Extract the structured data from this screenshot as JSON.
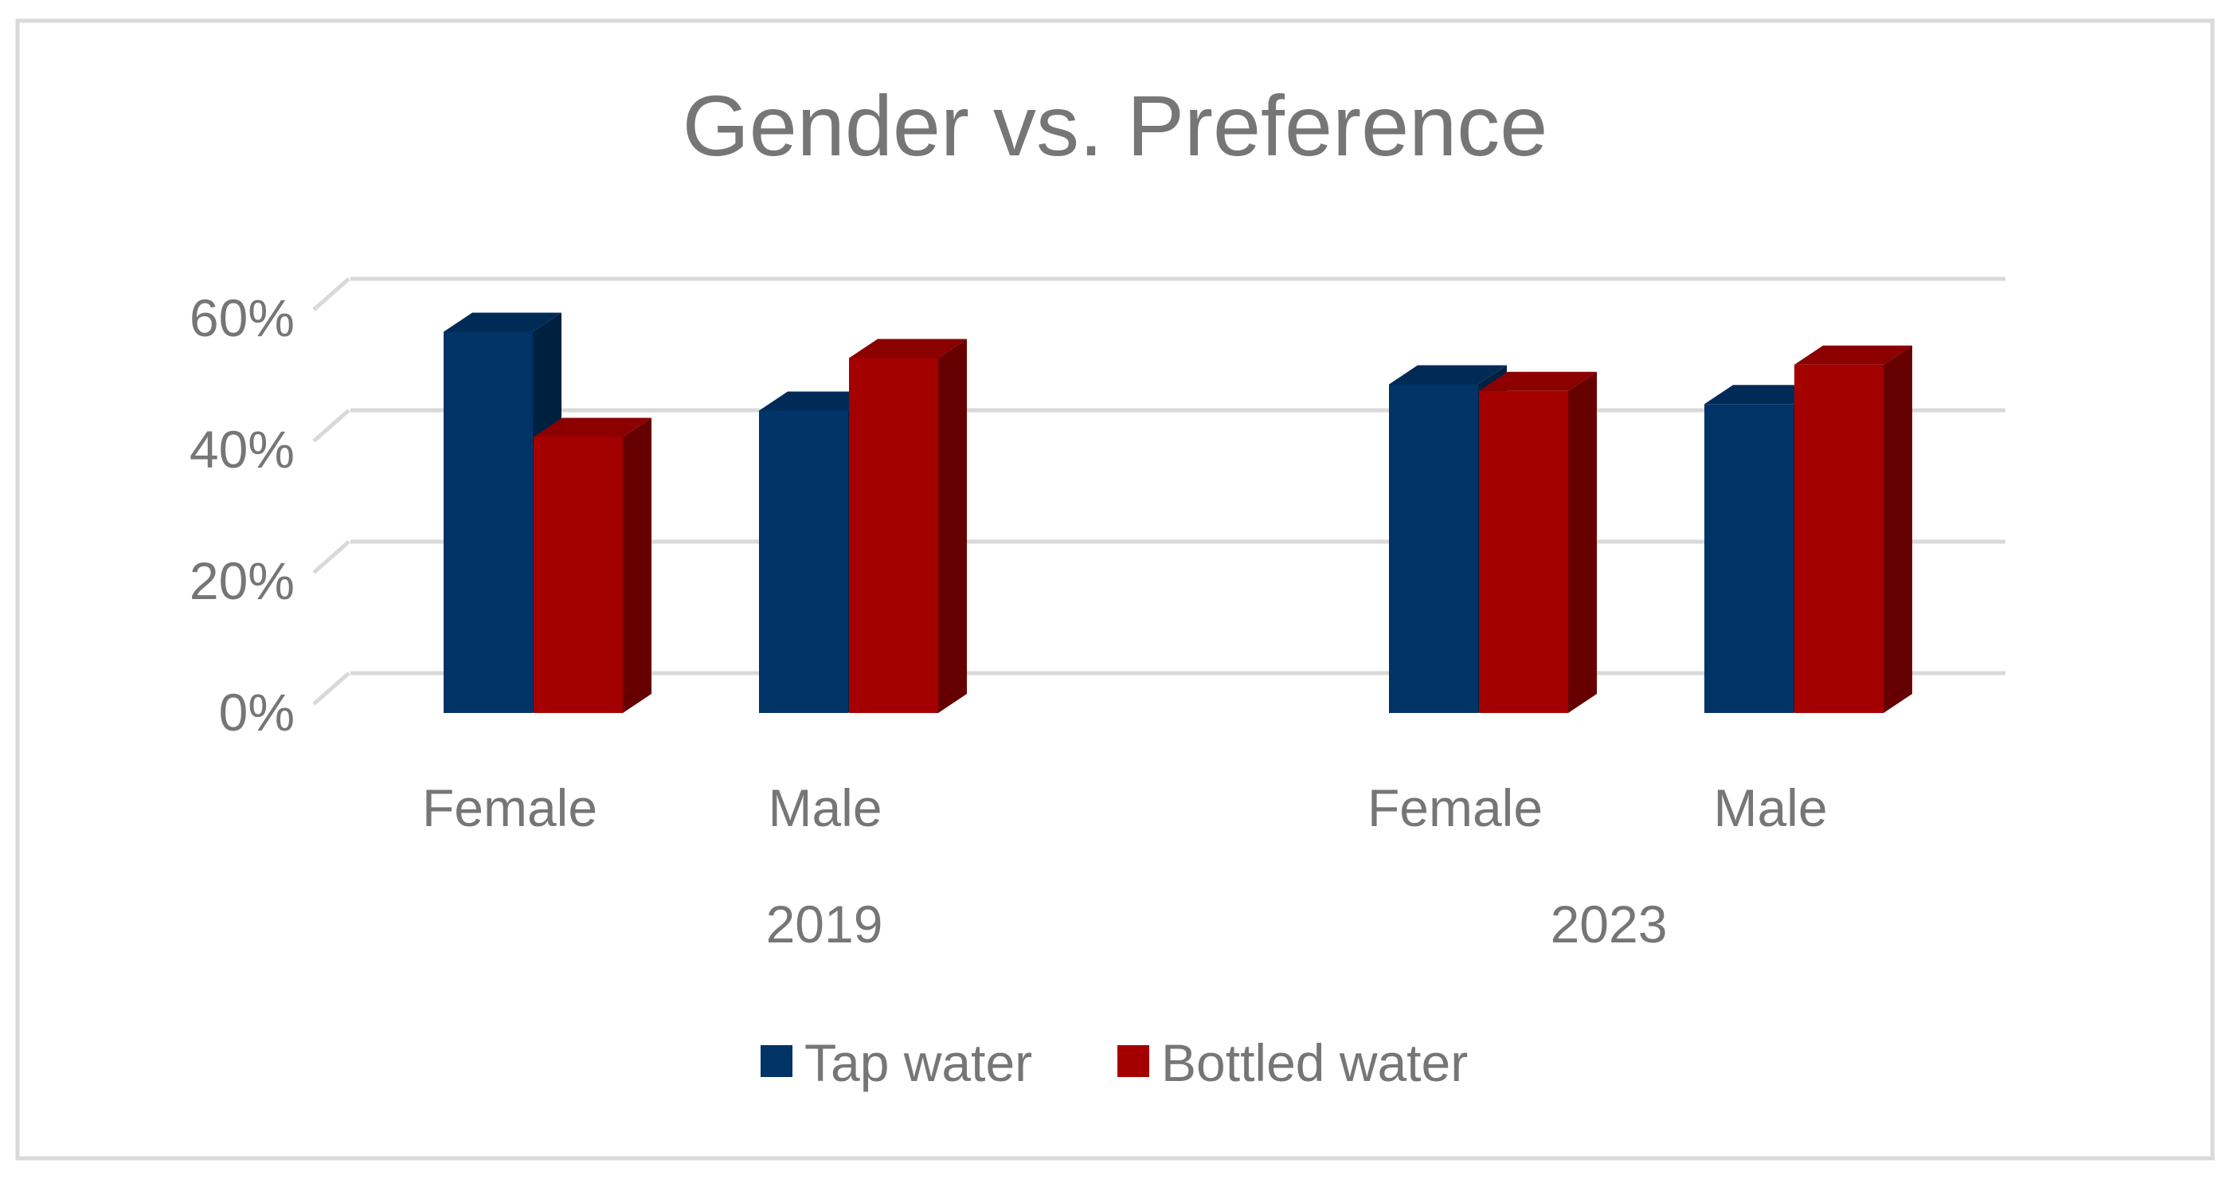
{
  "chart_data": {
    "type": "bar",
    "style": "3d-clustered-column",
    "title": "Gender vs. Preference",
    "xlabel": "",
    "ylabel": "",
    "ylim": [
      0,
      0.6
    ],
    "y_ticks": [
      0,
      0.2,
      0.4,
      0.6
    ],
    "y_tick_labels": [
      "0%",
      "20%",
      "40%",
      "60%"
    ],
    "groups": [
      {
        "label": "2019",
        "categories": [
          "Female",
          "Male"
        ]
      },
      {
        "label": "2023",
        "categories": [
          "Female",
          "Male"
        ]
      }
    ],
    "series": [
      {
        "name": "Tap water",
        "color": "#003366",
        "values": [
          0.58,
          0.46,
          0.5,
          0.47
        ]
      },
      {
        "name": "Bottled water",
        "color": "#A50000",
        "values": [
          0.42,
          0.54,
          0.49,
          0.53
        ]
      }
    ],
    "grid": true,
    "legend": "bottom"
  }
}
